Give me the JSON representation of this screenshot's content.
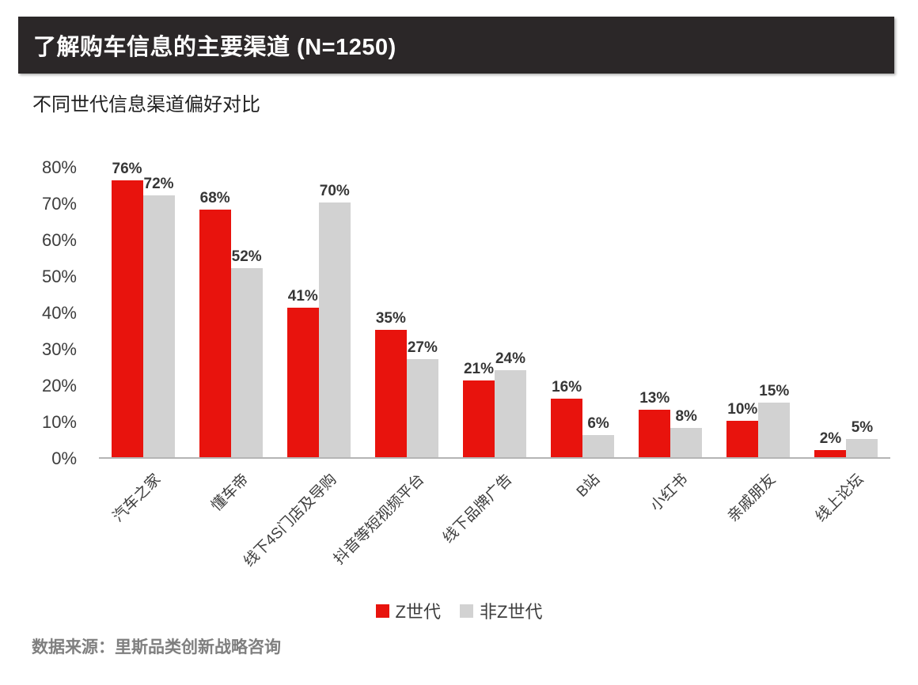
{
  "header": {
    "title": "了解购车信息的主要渠道 (N=1250)"
  },
  "subtitle": "不同世代信息渠道偏好对比",
  "footer": {
    "source": "数据来源：里斯品类创新战略咨询"
  },
  "legend": [
    {
      "label": "Z世代",
      "color": "#e8130d"
    },
    {
      "label": "非Z世代",
      "color": "#d2d2d2"
    }
  ],
  "chart_data": {
    "type": "bar",
    "title": "不同世代信息渠道偏好对比",
    "categories": [
      "汽车之家",
      "懂车帝",
      "线下4S门店及导购",
      "抖音等短视频平台",
      "线下品牌广告",
      "B站",
      "小红书",
      "亲戚朋友",
      "线上论坛"
    ],
    "series": [
      {
        "name": "Z世代",
        "color": "#e8130d",
        "values": [
          76,
          68,
          41,
          35,
          21,
          16,
          13,
          10,
          2
        ]
      },
      {
        "name": "非Z世代",
        "color": "#d2d2d2",
        "values": [
          72,
          52,
          70,
          27,
          24,
          6,
          8,
          15,
          5
        ]
      }
    ],
    "xlabel": "",
    "ylabel": "",
    "ylim": [
      0,
      80
    ],
    "y_ticks": [
      "0%",
      "10%",
      "20%",
      "30%",
      "40%",
      "50%",
      "60%",
      "70%",
      "80%"
    ],
    "grid": false,
    "legend_position": "bottom",
    "bar_value_labels": true,
    "value_label_format": "{value}%"
  },
  "colors": {
    "header_bg": "#2b2728",
    "header_text": "#ffffff",
    "bar_red": "#e8130d",
    "bar_gray": "#d2d2d2",
    "axis_line": "#b5b5b5",
    "tick_text": "#3d3d3d",
    "value_text": "#363636",
    "source_text": "#7f7f7f"
  }
}
